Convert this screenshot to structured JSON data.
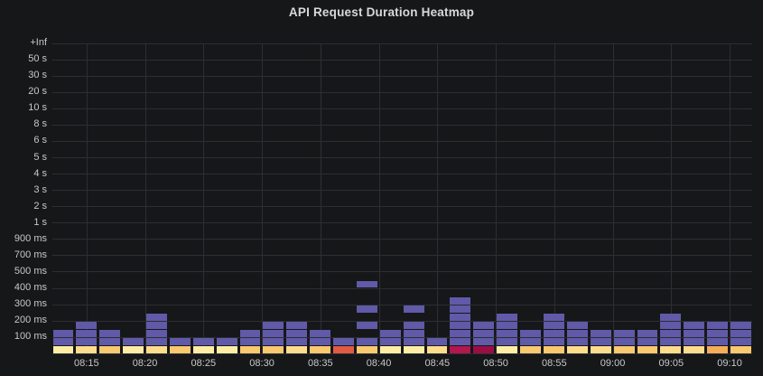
{
  "panel": {
    "title": "API Request Duration Heatmap"
  },
  "colors": {
    "background": "#161719",
    "grid": "#2c2e33",
    "title_text": "#d8d9da",
    "axis_text": "#c7c8c9"
  },
  "chart_data": {
    "type": "heatmap",
    "title": "API Request Duration Heatmap",
    "legend": "none",
    "grid": "on",
    "x_axis": {
      "tick_labels": [
        "08:15",
        "08:20",
        "08:25",
        "08:30",
        "08:35",
        "08:40",
        "08:45",
        "08:50",
        "08:55",
        "09:00",
        "09:05",
        "09:10"
      ],
      "bucket_minutes": 2,
      "range": [
        "08:12",
        "09:12"
      ]
    },
    "y_axis": {
      "tick_labels_top_to_bottom": [
        "+Inf",
        "50 s",
        "30 s",
        "20 s",
        "10 s",
        "8 s",
        "6 s",
        "5 s",
        "4 s",
        "3 s",
        "2 s",
        "1 s",
        "900 ms",
        "700 ms",
        "500 ms",
        "400 ms",
        "300 ms",
        "200 ms",
        "100 ms"
      ],
      "note": "log-like duration buckets; one unlabeled bucket row between each labeled gridline; two cell rows sit below the 100 ms line"
    },
    "palette": {
      "purple": "#605aa8",
      "yellow-1": "#ffeda6",
      "yellow-2": "#fcdd8c",
      "yellow-3": "#f9c96f",
      "orange": "#f5ad57",
      "red": "#e05a45",
      "crimson": "#b2174d",
      "crimson-dark": "#9a0e45"
    },
    "columns": [
      {
        "time": "08:12",
        "base": "yellow-1",
        "purple_rows": [
          2,
          3
        ]
      },
      {
        "time": "08:14",
        "base": "yellow-2",
        "purple_rows": [
          2,
          3,
          4
        ]
      },
      {
        "time": "08:16",
        "base": "yellow-3",
        "purple_rows": [
          2,
          3
        ]
      },
      {
        "time": "08:18",
        "base": "yellow-1",
        "purple_rows": [
          2
        ]
      },
      {
        "time": "08:20",
        "base": "yellow-2",
        "purple_rows": [
          2,
          3,
          4,
          5
        ]
      },
      {
        "time": "08:22",
        "base": "yellow-3",
        "purple_rows": [
          2
        ]
      },
      {
        "time": "08:24",
        "base": "yellow-1",
        "purple_rows": [
          2
        ]
      },
      {
        "time": "08:26",
        "base": "yellow-1",
        "purple_rows": [
          2
        ]
      },
      {
        "time": "08:28",
        "base": "yellow-3",
        "purple_rows": [
          2,
          3
        ]
      },
      {
        "time": "08:30",
        "base": "yellow-3",
        "purple_rows": [
          2,
          3,
          4
        ]
      },
      {
        "time": "08:32",
        "base": "yellow-2",
        "purple_rows": [
          2,
          3,
          4
        ]
      },
      {
        "time": "08:34",
        "base": "yellow-3",
        "purple_rows": [
          2,
          3
        ]
      },
      {
        "time": "08:36",
        "base": "red",
        "purple_rows": [
          2
        ]
      },
      {
        "time": "08:38",
        "base": "yellow-3",
        "purple_rows": [
          2,
          4,
          6,
          9
        ]
      },
      {
        "time": "08:40",
        "base": "yellow-1",
        "purple_rows": [
          2,
          3
        ]
      },
      {
        "time": "08:42",
        "base": "yellow-1",
        "purple_rows": [
          2,
          3,
          4,
          6
        ]
      },
      {
        "time": "08:44",
        "base": "yellow-2",
        "purple_rows": [
          2
        ]
      },
      {
        "time": "08:46",
        "base": "crimson",
        "purple_rows": [
          2,
          3,
          4,
          5,
          6,
          7
        ]
      },
      {
        "time": "08:48",
        "base": "crimson-dark",
        "purple_rows": [
          2,
          3,
          4
        ]
      },
      {
        "time": "08:50",
        "base": "yellow-1",
        "purple_rows": [
          2,
          3,
          4,
          5
        ]
      },
      {
        "time": "08:52",
        "base": "yellow-3",
        "purple_rows": [
          2,
          3
        ]
      },
      {
        "time": "08:54",
        "base": "yellow-3",
        "purple_rows": [
          2,
          3,
          4,
          5
        ]
      },
      {
        "time": "08:56",
        "base": "yellow-2",
        "purple_rows": [
          2,
          3,
          4
        ]
      },
      {
        "time": "08:58",
        "base": "yellow-2",
        "purple_rows": [
          2,
          3
        ]
      },
      {
        "time": "09:00",
        "base": "yellow-3",
        "purple_rows": [
          2,
          3
        ]
      },
      {
        "time": "09:02",
        "base": "yellow-3",
        "purple_rows": [
          2,
          3
        ]
      },
      {
        "time": "09:04",
        "base": "yellow-2",
        "purple_rows": [
          2,
          3,
          4,
          5
        ]
      },
      {
        "time": "09:06",
        "base": "yellow-2",
        "purple_rows": [
          2,
          3,
          4
        ]
      },
      {
        "time": "09:08",
        "base": "orange",
        "purple_rows": [
          2,
          3,
          4
        ]
      },
      {
        "time": "09:10",
        "base": "yellow-3",
        "purple_rows": [
          2,
          3,
          4
        ]
      }
    ]
  }
}
